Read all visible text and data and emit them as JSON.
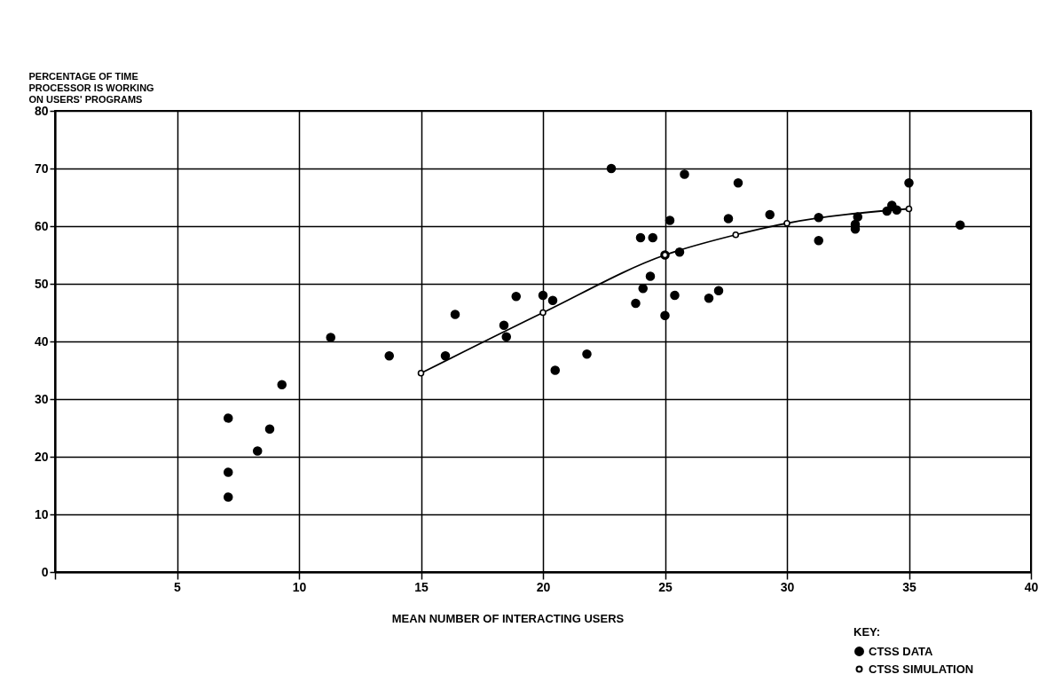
{
  "chart_data": {
    "type": "scatter",
    "ylabel": "PERCENTAGE OF TIME\nPROCESSOR IS WORKING\nON USERS' PROGRAMS",
    "xlabel": "MEAN NUMBER OF INTERACTING USERS",
    "legend_title": "KEY:",
    "legend": "bottom right",
    "grid": true,
    "marker": "circle",
    "xlim": [
      0,
      40
    ],
    "xticks": [
      {
        "value": 0,
        "label": null
      },
      5,
      10,
      15,
      20,
      25,
      30,
      35,
      40
    ],
    "ylim": [
      0,
      80
    ],
    "yticks": [
      0,
      10,
      20,
      30,
      40,
      50,
      60,
      70,
      80
    ],
    "series": [
      {
        "name": "CTSS DATA",
        "type": "scatter",
        "color": "#000000",
        "x": [
          7.1,
          7.1,
          7.1,
          8.3,
          8.8,
          9.3,
          11.3,
          13.7,
          16,
          16.4,
          18.4,
          18.5,
          18.9,
          20,
          20.4,
          20.5,
          21.8,
          22.8,
          23.8,
          24,
          24.1,
          24.4,
          24.5,
          25,
          25,
          25.2,
          25.4,
          25.6,
          25.8,
          26.8,
          27.2,
          27.6,
          28,
          29.3,
          31.3,
          31.3,
          32.8,
          32.8,
          32.9,
          34.1,
          34.3,
          34.5,
          35,
          37.1
        ],
        "values": [
          13,
          17.3,
          26.7,
          21,
          24.8,
          32.5,
          40.7,
          37.5,
          37.5,
          44.7,
          42.8,
          40.8,
          47.8,
          48,
          47.1,
          35,
          37.8,
          70,
          46.6,
          58,
          49.2,
          51.3,
          58,
          55,
          44.5,
          61,
          48,
          55.5,
          69,
          47.5,
          48.8,
          61.3,
          67.5,
          62,
          61.5,
          57.5,
          60.3,
          59.5,
          61.6,
          62.6,
          63.6,
          62.8,
          67.5,
          60.2
        ]
      },
      {
        "name": "CTSS SIMULATION",
        "type": "line",
        "color": "#000000",
        "x": [
          15,
          20,
          25,
          27.9,
          30,
          35
        ],
        "values": [
          34.5,
          45,
          55,
          58.5,
          60.5,
          63
        ]
      }
    ]
  }
}
